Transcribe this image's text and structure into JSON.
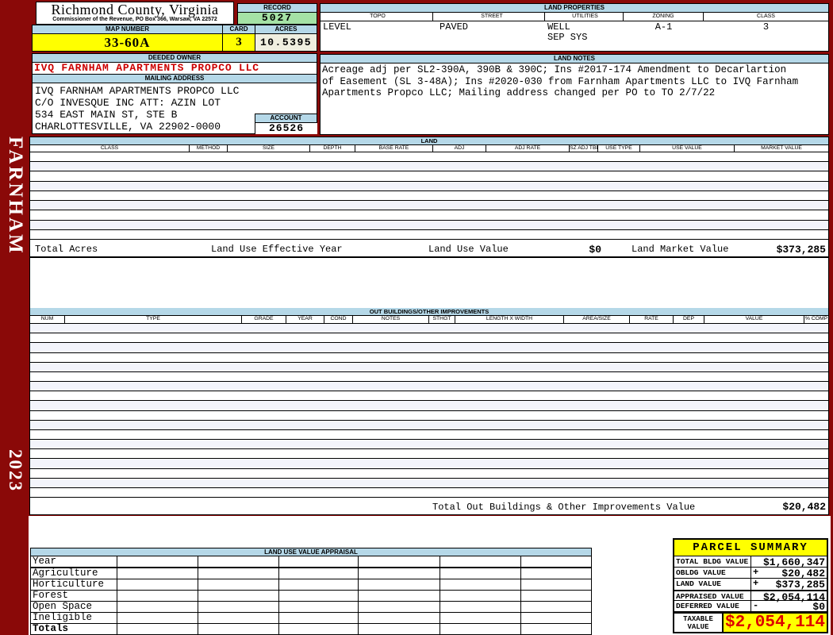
{
  "sidebar": {
    "name": "FARNHAM",
    "year": "2023"
  },
  "header": {
    "county": "Richmond County, Virginia",
    "commissioner_line": "Commissioner of the Revenue, PO Box 366, Warsaw, VA 22572",
    "record_label": "RECORD",
    "record_value": "5027",
    "map_number_label": "MAP NUMBER",
    "map_number_value": "33-60A",
    "card_label": "CARD",
    "card_value": "3",
    "acres_label": "ACRES",
    "acres_value": "10.5395"
  },
  "land_properties": {
    "title": "LAND PROPERTIES",
    "columns": [
      "TOPO",
      "STREET",
      "UTILITIES",
      "ZONING",
      "CLASS"
    ],
    "values": {
      "topo": "LEVEL",
      "street": "PAVED",
      "utilities_line1": "WELL",
      "utilities_line2": "SEP SYS",
      "zoning": "A-1",
      "class": "3"
    }
  },
  "owner": {
    "deeded_owner_label": "DEEDED OWNER",
    "deeded_owner": "IVQ FARNHAM APARTMENTS PROPCO LLC",
    "mailing_address_label": "MAILING ADDRESS",
    "mailing_address_lines": [
      "IVQ FARNHAM APARTMENTS PROPCO LLC",
      "C/O INVESQUE INC ATT: AZIN LOT",
      "534 EAST MAIN ST, STE B",
      "CHARLOTTESVILLE, VA 22902-0000"
    ],
    "account_label": "ACCOUNT",
    "account_value": "26526"
  },
  "land_notes": {
    "title": "LAND NOTES",
    "lines": [
      "Acreage adj per SL2-390A, 390B & 390C; Ins #2017-174 Amendment to Decarlartion",
      "of Easement (SL 3-48A); Ins #2020-030 from Farnham Apartments LLC to IVQ Farnham",
      "Apartments Propco LLC; Mailing address changed per PO to TO 2/7/22"
    ]
  },
  "land_table": {
    "title": "LAND",
    "columns": [
      "CLASS",
      "METHOD",
      "SIZE",
      "DEPTH",
      "BASE RATE",
      "ADJ",
      "ADJ RATE",
      "SZ ADJ TBL",
      "USE TYPE",
      "USE VALUE",
      "MARKET VALUE"
    ],
    "empty_row_count": 9,
    "summary": {
      "total_acres_label": "Total Acres",
      "effective_year_label": "Land Use Effective Year",
      "use_value_label": "Land Use Value",
      "use_value": "$0",
      "market_value_label": "Land Market Value",
      "market_value": "$373,285"
    }
  },
  "out_buildings": {
    "title": "OUT BUILDINGS/OTHER IMPROVEMENTS",
    "columns": [
      "NUM",
      "TYPE",
      "GRADE",
      "YEAR",
      "COND",
      "NOTES",
      "STHGT",
      "LENGTH X WIDTH",
      "AREA/SIZE",
      "RATE",
      "DEP",
      "VALUE",
      "% COMP"
    ],
    "empty_row_count": 18,
    "total_label": "Total Out Buildings & Other Improvements Value",
    "total_value": "$20,482"
  },
  "land_use_appraisal": {
    "title": "LAND USE VALUE APPRAISAL",
    "row_labels": [
      "Year",
      "Agriculture",
      "Horticulture",
      "Forest",
      "Open Space",
      "Ineligible",
      "Totals"
    ],
    "data_column_count": 6
  },
  "parcel_summary": {
    "title": "PARCEL SUMMARY",
    "rows": [
      {
        "label": "TOTAL BLDG VALUE",
        "op": "",
        "value": "$1,660,347"
      },
      {
        "label": "OBLDG VALUE",
        "op": "+",
        "value": "$20,482"
      },
      {
        "label": "LAND VALUE",
        "op": "+",
        "value": "$373,285"
      },
      {
        "label": "APPRAISED VALUE",
        "op": "",
        "value": "$2,054,114"
      },
      {
        "label": "DEFERRED VALUE",
        "op": "-",
        "value": "$0"
      }
    ],
    "taxable_label": "TAXABLE VALUE",
    "taxable_value": "$2,054,114"
  },
  "colors": {
    "page_maroon": "#8a0908",
    "header_blue": "#b5d8e8",
    "record_green": "#a5e2a5",
    "highlight_yellow": "#ffff00",
    "acres_cream": "#f0efe0",
    "owner_red": "#cc0000",
    "taxable_red": "#dd0000"
  }
}
